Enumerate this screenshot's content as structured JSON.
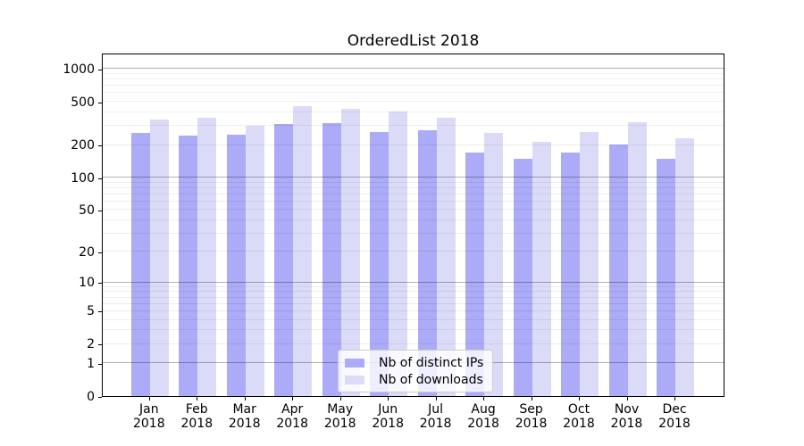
{
  "chart_data": {
    "type": "bar",
    "title": "OrderedList 2018",
    "categories": [
      "Jan",
      "Feb",
      "Mar",
      "Apr",
      "May",
      "Jun",
      "Jul",
      "Aug",
      "Sep",
      "Oct",
      "Nov",
      "Dec"
    ],
    "category_year": "2018",
    "series": [
      {
        "name": "Nb of distinct IPs",
        "color": "#ababf7",
        "values": [
          257,
          243,
          251,
          310,
          319,
          264,
          272,
          171,
          148,
          172,
          203,
          148
        ]
      },
      {
        "name": "Nb of downloads",
        "color": "#dbdbf8",
        "values": [
          344,
          355,
          300,
          457,
          432,
          410,
          360,
          261,
          216,
          266,
          326,
          230
        ]
      }
    ],
    "xlabel": "",
    "ylabel": "",
    "yscale": "log1p",
    "yticks": [
      0,
      1,
      2,
      5,
      10,
      20,
      50,
      100,
      200,
      500,
      1000
    ],
    "ylim": [
      0,
      1400
    ],
    "grid": "both, drawn above bars; major lines at powers of 10",
    "legend_position": "lower center inside plot"
  }
}
